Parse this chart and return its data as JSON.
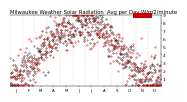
{
  "title": "Milwaukee Weather Solar Radiation  Avg per Day W/m2/minute",
  "title_fontsize": 3.8,
  "background_color": "#ffffff",
  "plot_bg_color": "#ffffff",
  "grid_color": "#bbbbbb",
  "dot_color_primary": "#cc0000",
  "dot_color_secondary": "#000000",
  "ylim": [
    0,
    9
  ],
  "yticks": [
    1,
    2,
    3,
    4,
    5,
    6,
    7,
    8,
    9
  ],
  "ylabel_fontsize": 3.2,
  "xlabel_fontsize": 2.8,
  "num_points": 365,
  "legend_color_current": "#cc0000",
  "legend_color_avg": "#000000",
  "dot_size_primary": 0.6,
  "dot_size_secondary": 0.6
}
